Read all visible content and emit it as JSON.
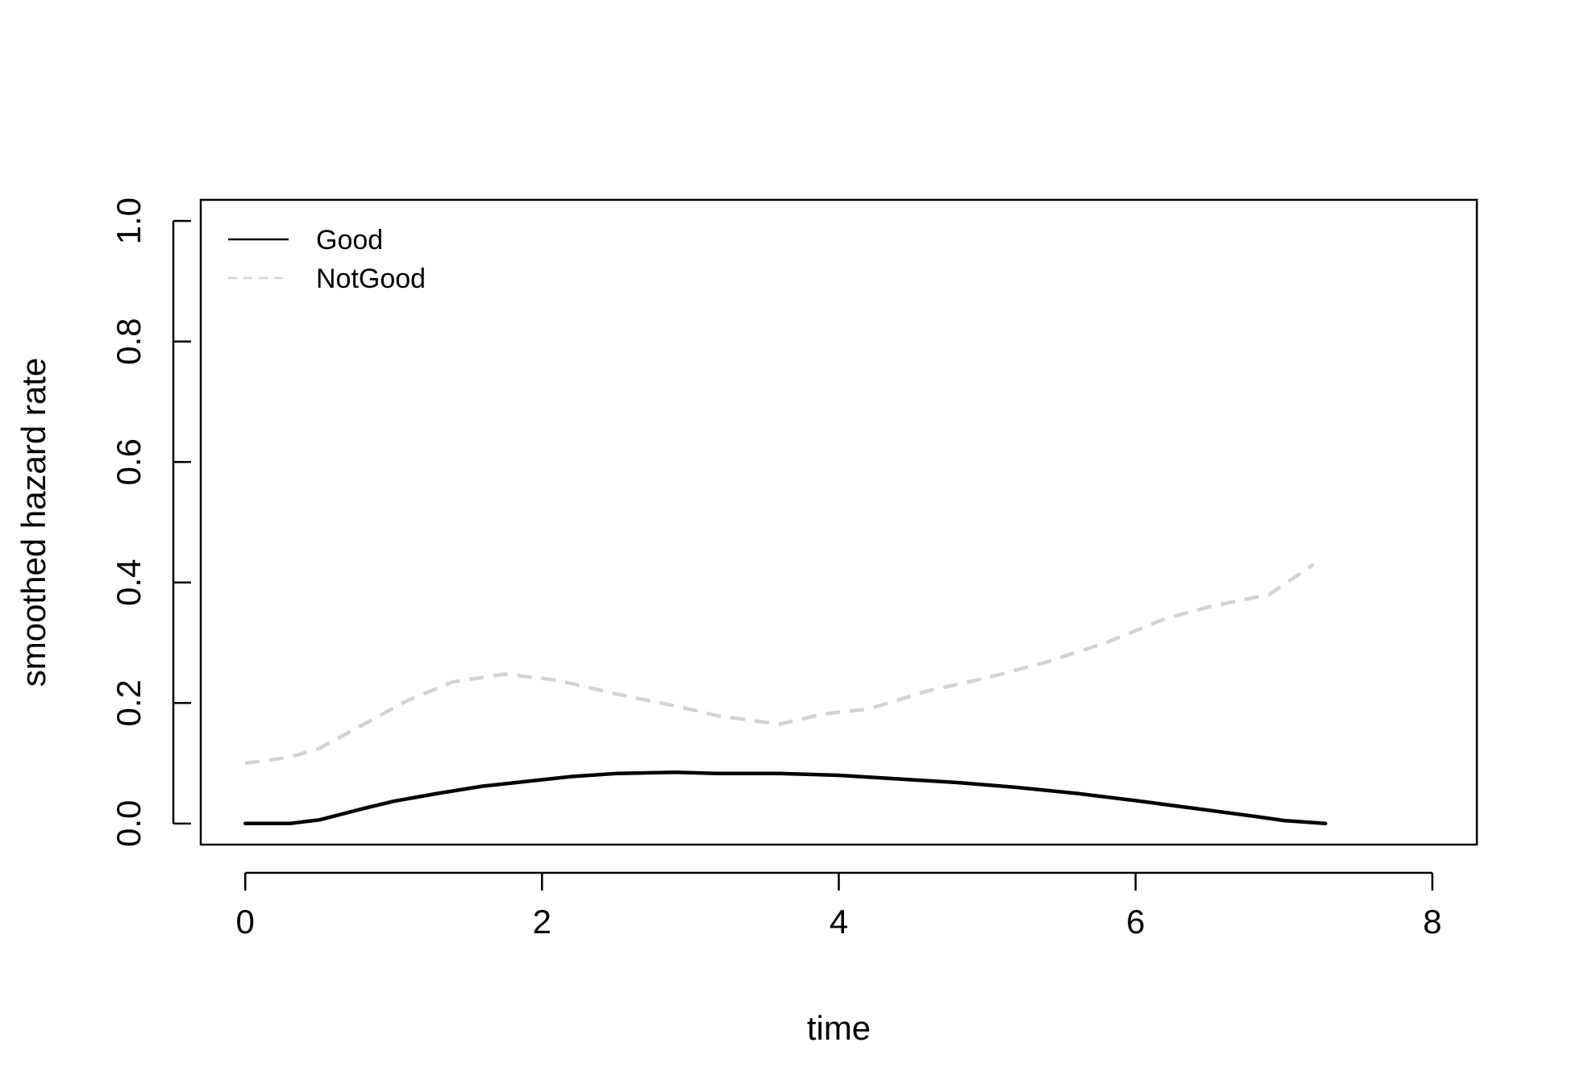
{
  "chart_data": {
    "type": "line",
    "xlabel": "time",
    "ylabel": "smoothed hazard rate",
    "xlim": [
      -0.3,
      8.3
    ],
    "ylim": [
      -0.035,
      1.035
    ],
    "xticks": [
      0,
      2,
      4,
      6,
      8
    ],
    "yticks": [
      0.0,
      0.2,
      0.4,
      0.6,
      0.8,
      1.0
    ],
    "xtick_labels": [
      "0",
      "2",
      "4",
      "6",
      "8"
    ],
    "ytick_labels": [
      "0.0",
      "0.2",
      "0.4",
      "0.6",
      "0.8",
      "1.0"
    ],
    "grid": false,
    "legend_position": "top-left",
    "series": [
      {
        "name": "Good",
        "color": "#000000",
        "dash": "solid",
        "x": [
          0,
          0.3,
          0.5,
          0.8,
          1.0,
          1.3,
          1.6,
          1.9,
          2.2,
          2.5,
          2.9,
          3.2,
          3.6,
          4.0,
          4.4,
          4.8,
          5.2,
          5.6,
          6.0,
          6.4,
          6.8,
          7.0,
          7.28
        ],
        "y": [
          0.0,
          0.0,
          0.006,
          0.025,
          0.037,
          0.05,
          0.062,
          0.07,
          0.078,
          0.083,
          0.085,
          0.083,
          0.083,
          0.08,
          0.074,
          0.068,
          0.06,
          0.05,
          0.038,
          0.025,
          0.012,
          0.005,
          0.0
        ]
      },
      {
        "name": "NotGood",
        "color": "#d3d3d3",
        "dash": "dashed",
        "x": [
          0,
          0.3,
          0.5,
          0.8,
          1.1,
          1.4,
          1.75,
          2.1,
          2.5,
          2.9,
          3.2,
          3.6,
          3.9,
          4.2,
          4.6,
          5.0,
          5.4,
          5.8,
          6.2,
          6.5,
          6.9,
          7.2
        ],
        "y": [
          0.1,
          0.11,
          0.125,
          0.165,
          0.205,
          0.235,
          0.248,
          0.238,
          0.215,
          0.195,
          0.178,
          0.165,
          0.182,
          0.19,
          0.22,
          0.242,
          0.268,
          0.3,
          0.34,
          0.36,
          0.38,
          0.43
        ]
      }
    ]
  }
}
